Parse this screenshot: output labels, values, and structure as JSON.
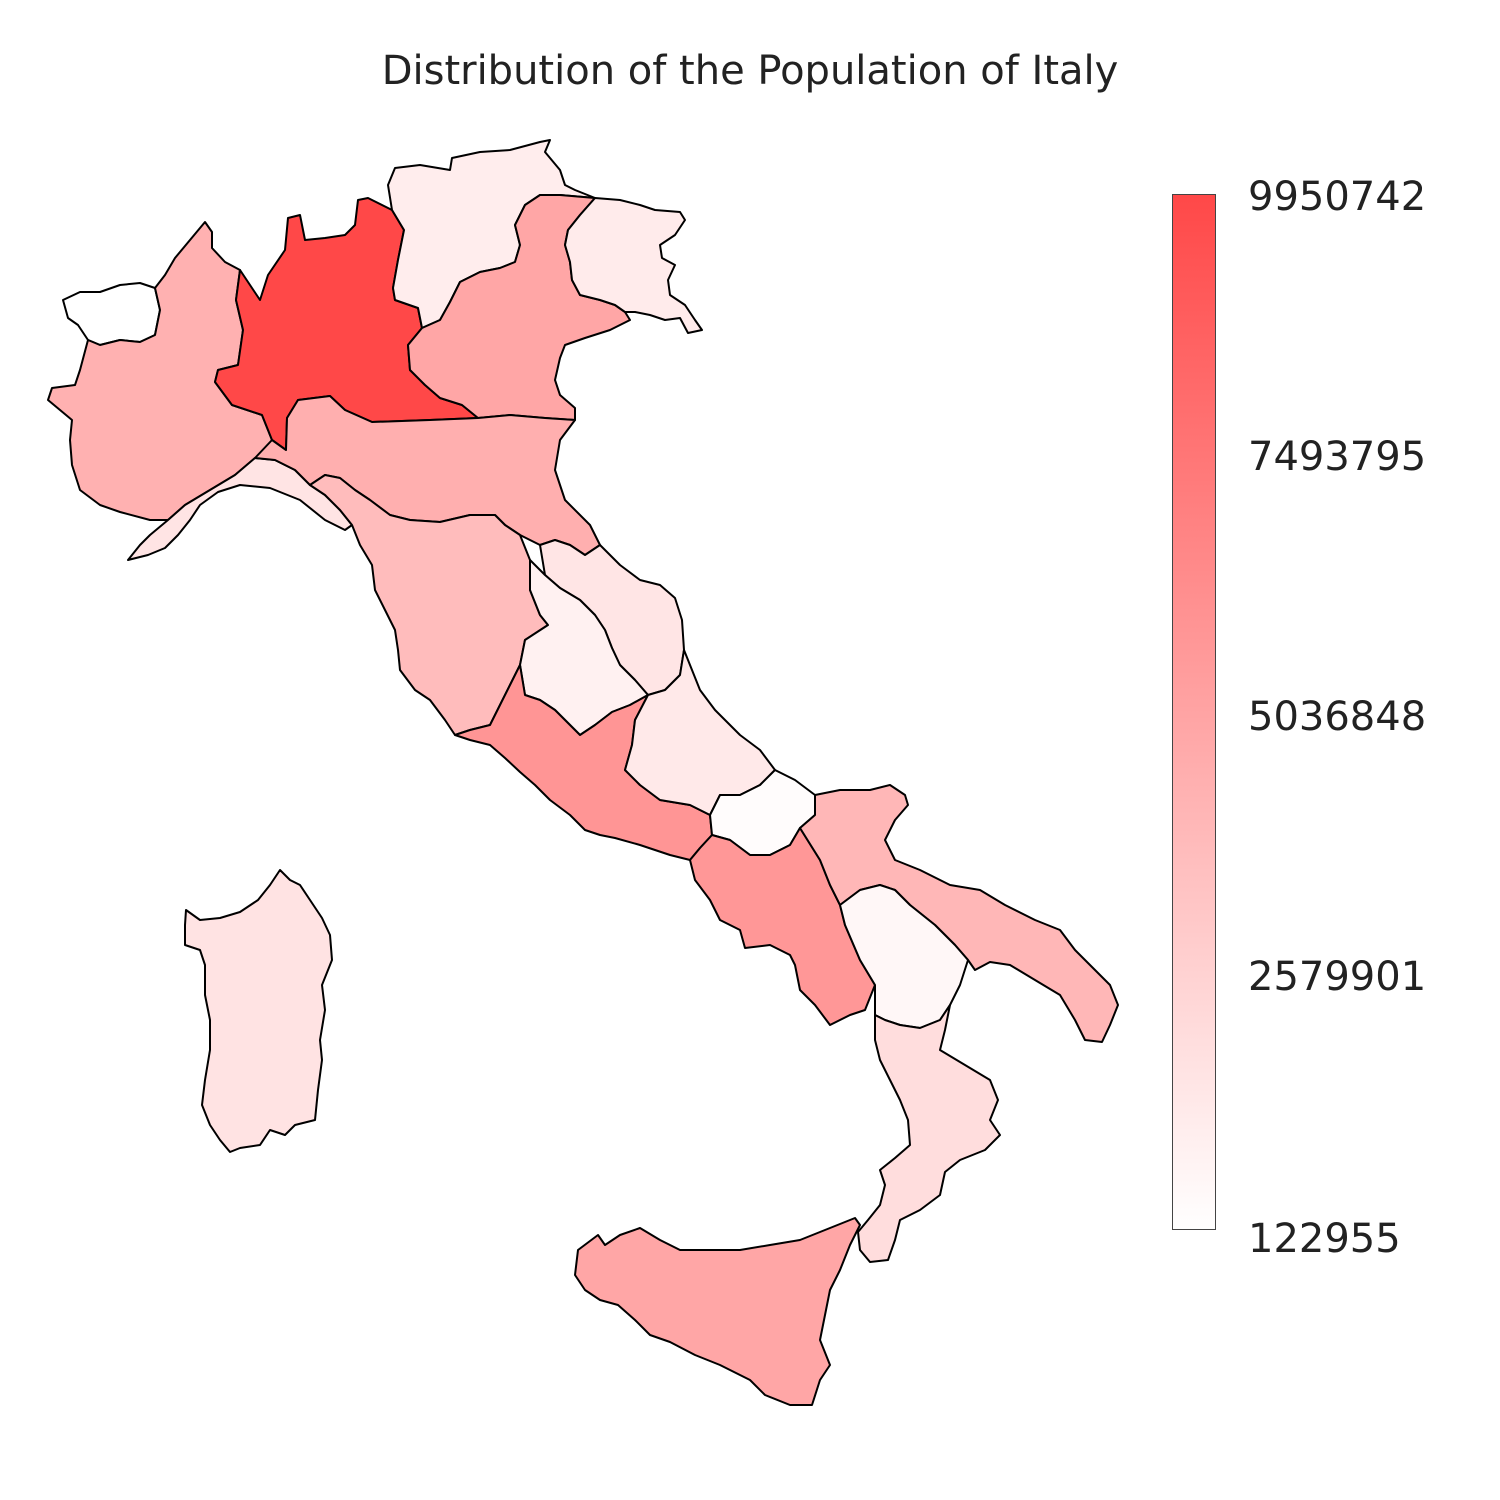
{
  "title": "Distribution of the Population of Italy",
  "colors": {
    "low": "#ffffff",
    "high": "#ff4848",
    "border": "#000000"
  },
  "legend": {
    "ticks": [
      "9950742",
      "7493795",
      "5036848",
      "2579901",
      "122955"
    ],
    "min": 122955,
    "max": 9950742
  },
  "regions": [
    {
      "name": "Lombardia",
      "value": 9950742
    },
    {
      "name": "Campania",
      "value": 5700000
    },
    {
      "name": "Lazio",
      "value": 5800000
    },
    {
      "name": "Sicilia",
      "value": 4900000
    },
    {
      "name": "Veneto",
      "value": 4900000
    },
    {
      "name": "Emilia-Romagna",
      "value": 4400000
    },
    {
      "name": "Piemonte",
      "value": 4300000
    },
    {
      "name": "Puglia",
      "value": 4000000
    },
    {
      "name": "Toscana",
      "value": 3700000
    },
    {
      "name": "Calabria",
      "value": 1950000
    },
    {
      "name": "Sardegna",
      "value": 1650000
    },
    {
      "name": "Liguria",
      "value": 1550000
    },
    {
      "name": "Marche",
      "value": 1530000
    },
    {
      "name": "Abruzzo",
      "value": 1300000
    },
    {
      "name": "Friuli-Venezia Giulia",
      "value": 1210000
    },
    {
      "name": "Trentino-Alto Adige",
      "value": 1070000
    },
    {
      "name": "Umbria",
      "value": 880000
    },
    {
      "name": "Basilicata",
      "value": 560000
    },
    {
      "name": "Molise",
      "value": 300000
    },
    {
      "name": "Valle d'Aosta",
      "value": 122955
    }
  ]
}
